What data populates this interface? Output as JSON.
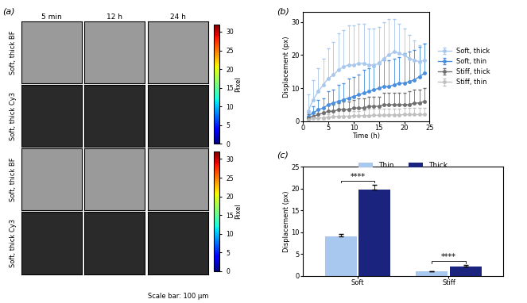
{
  "images": {
    "label": "(a)",
    "column_titles": [
      "5 min",
      "12 h",
      "24 h"
    ],
    "row_labels": [
      "Soft, thick BF",
      "Soft, thick Cy3",
      "Soft, thick BF",
      "Soft, thick Cy3"
    ],
    "colorbar": {
      "label": "Pixel",
      "lim": [
        0,
        32
      ],
      "ticks": [
        0,
        5,
        10,
        15,
        20,
        25,
        30
      ]
    },
    "scale_bar": "Scale bar: 100 μm"
  },
  "chart_data": [
    {
      "type": "line",
      "label": "(b)",
      "x_label": "Time (h)",
      "y_label": "Displacement (px)",
      "x": [
        1,
        2,
        3,
        4,
        5,
        6,
        7,
        8,
        9,
        10,
        11,
        12,
        13,
        14,
        15,
        16,
        17,
        18,
        19,
        20,
        21,
        22,
        23,
        24
      ],
      "xlim": [
        0,
        25
      ],
      "xticks": [
        0,
        5,
        10,
        15,
        20,
        25
      ],
      "ylim": [
        0,
        33
      ],
      "yticks": [
        0,
        10,
        20,
        30
      ],
      "marker": "o",
      "legend": "right",
      "series": [
        {
          "name": "Soft, thick",
          "color": "#a9c8ee",
          "values": [
            3,
            6.5,
            9,
            11,
            13,
            14,
            15.5,
            16.5,
            17,
            17,
            17.5,
            17.5,
            17,
            17,
            17.5,
            19,
            20,
            21,
            20.5,
            20,
            19,
            18.5,
            18,
            18.5
          ],
          "errors": [
            5,
            6,
            7,
            8,
            9,
            10,
            11,
            11,
            12,
            12,
            12,
            12,
            11,
            11,
            11,
            11,
            11,
            10,
            9,
            8,
            7,
            6,
            5,
            5
          ]
        },
        {
          "name": "Soft, thin",
          "color": "#4a8fe0",
          "values": [
            1.5,
            2.5,
            3.5,
            4,
            5,
            5.5,
            6,
            6.5,
            7,
            7.5,
            8,
            8.5,
            9,
            9.5,
            10,
            10.5,
            10.5,
            11,
            11.5,
            11.5,
            12,
            12.5,
            13.5,
            14.5
          ],
          "errors": [
            1,
            2,
            3,
            3,
            4,
            4,
            5,
            5,
            6,
            6,
            6,
            7,
            7,
            7,
            8,
            8,
            8,
            8,
            8,
            9,
            9,
            9,
            9,
            9
          ]
        },
        {
          "name": "Stiff, thick",
          "color": "#707070",
          "values": [
            1,
            1.5,
            2,
            2.5,
            3,
            3,
            3.5,
            3.5,
            3.5,
            4,
            4,
            4,
            4.5,
            4.5,
            4.5,
            5,
            5,
            5,
            5,
            5,
            5,
            5.5,
            5.5,
            6
          ],
          "errors": [
            1,
            1,
            1.5,
            1.5,
            2,
            2,
            2,
            2.5,
            2.5,
            2.5,
            3,
            3,
            3,
            3,
            3,
            3.5,
            3.5,
            3.5,
            3.5,
            3.5,
            4,
            4,
            4,
            4
          ]
        },
        {
          "name": "Stiff, thin",
          "color": "#c0c0c0",
          "values": [
            0.5,
            0.8,
            1,
            1,
            1.2,
            1.3,
            1.5,
            1.5,
            1.5,
            1.6,
            1.6,
            1.7,
            1.7,
            1.8,
            1.8,
            1.8,
            1.9,
            1.9,
            1.9,
            2,
            2,
            2,
            2,
            2
          ],
          "errors": [
            1,
            1,
            1,
            1,
            1,
            1.5,
            1.5,
            1.5,
            1.5,
            1.5,
            1.5,
            1.5,
            2,
            2,
            2,
            2,
            2,
            2,
            2,
            2,
            2,
            2,
            2,
            2
          ]
        }
      ]
    },
    {
      "type": "bar",
      "label": "(c)",
      "y_label": "Displacement (px)",
      "categories": [
        "Soft",
        "Stiff"
      ],
      "ylim": [
        0,
        25
      ],
      "yticks": [
        0,
        5,
        10,
        15,
        20,
        25
      ],
      "legend": "upper center",
      "series": [
        {
          "name": "Thin",
          "color": "#a8c8f0",
          "values": [
            9,
            1
          ],
          "errors": [
            0.6,
            0.1
          ]
        },
        {
          "name": "Thick",
          "color": "#1a237e",
          "values": [
            19.8,
            2.2
          ],
          "errors": [
            1.0,
            0.2
          ]
        }
      ],
      "significance": [
        "****",
        "****"
      ]
    }
  ]
}
